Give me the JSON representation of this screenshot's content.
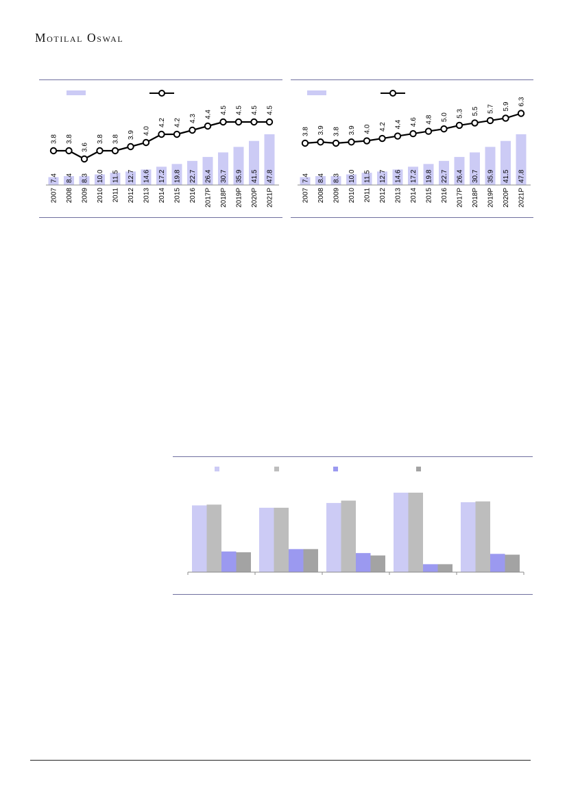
{
  "header": {
    "logo_text": "Motilal Oswal"
  },
  "colors": {
    "bar_light": "#cccbf5",
    "bar_grey": "#bdbdbd",
    "bar_mid": "#9b99f0",
    "bar_dark": "#a3a3a3",
    "line": "#000000",
    "rule": "#6e6e9e"
  },
  "chart_data": [
    {
      "type": "bar",
      "x": [
        "2007",
        "2008",
        "2009",
        "2010",
        "2011",
        "2012",
        "2013",
        "2014",
        "2015",
        "2016",
        "2017P",
        "2018P",
        "2019P",
        "2020P",
        "2021P"
      ],
      "series": [
        {
          "values": [
            7.4,
            8.4,
            8.3,
            10.0,
            11.5,
            12.7,
            14.6,
            17.2,
            19.8,
            22.7,
            26.4,
            30.7,
            35.9,
            41.5,
            47.8
          ],
          "labels": [
            "7.4",
            "8.4",
            "8.3",
            "10.0",
            "11.5",
            "12.7",
            "14.6",
            "17.2",
            "19.8",
            "22.7",
            "26.4",
            "30.7",
            "35.9",
            "41.5",
            "47.8"
          ],
          "render": "bar"
        },
        {
          "values": [
            3.8,
            3.8,
            3.6,
            3.8,
            3.8,
            3.9,
            4.0,
            4.2,
            4.2,
            4.3,
            4.4,
            4.5,
            4.5,
            4.5,
            4.5
          ],
          "labels": [
            "3.8",
            "3.8",
            "3.6",
            "3.8",
            "3.8",
            "3.9",
            "4.0",
            "4.2",
            "4.2",
            "4.3",
            "4.4",
            "4.5",
            "4.5",
            "4.5",
            "4.5"
          ],
          "render": "line"
        }
      ],
      "legend": "top-left",
      "grid": false
    },
    {
      "type": "bar",
      "x": [
        "2007",
        "2008",
        "2009",
        "2010",
        "2011",
        "2012",
        "2013",
        "2014",
        "2015",
        "2016",
        "2017P",
        "2018P",
        "2019P",
        "2020P",
        "2021P"
      ],
      "series": [
        {
          "values": [
            7.4,
            8.4,
            8.3,
            10.0,
            11.5,
            12.7,
            14.6,
            17.2,
            19.8,
            22.7,
            26.4,
            30.7,
            35.9,
            41.5,
            47.8
          ],
          "labels": [
            "7.4",
            "8.4",
            "8.3",
            "10.0",
            "11.5",
            "12.7",
            "14.6",
            "17.2",
            "19.8",
            "22.7",
            "26.4",
            "30.7",
            "35.9",
            "41.5",
            "47.8"
          ],
          "render": "bar"
        },
        {
          "values": [
            3.8,
            3.9,
            3.8,
            3.9,
            4.0,
            4.2,
            4.4,
            4.6,
            4.8,
            5.0,
            5.3,
            5.5,
            5.7,
            5.9,
            6.3
          ],
          "labels": [
            "3.8",
            "3.9",
            "3.8",
            "3.9",
            "4.0",
            "4.2",
            "4.4",
            "4.6",
            "4.8",
            "5.0",
            "5.3",
            "5.5",
            "5.7",
            "5.9",
            "6.3"
          ],
          "render": "line"
        }
      ],
      "legend": "top-left",
      "grid": false
    },
    {
      "type": "bar",
      "categories": [
        "",
        "",
        "",
        "",
        ""
      ],
      "series": [
        {
          "values": [
            0.84,
            0.81,
            0.87,
            1.0,
            0.88
          ]
        },
        {
          "values": [
            0.85,
            0.81,
            0.9,
            1.0,
            0.89
          ]
        },
        {
          "values": [
            0.26,
            0.29,
            0.24,
            0.1,
            0.23
          ]
        },
        {
          "values": [
            0.25,
            0.29,
            0.21,
            0.1,
            0.22
          ]
        }
      ],
      "legend": "top",
      "grid": false,
      "axes_labels_visible": false
    }
  ]
}
